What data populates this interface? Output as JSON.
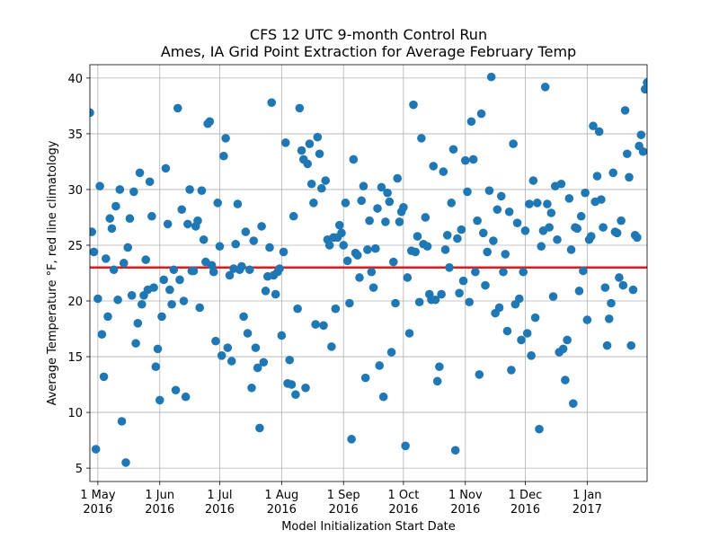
{
  "chart_data": {
    "type": "scatter",
    "title": "CFS 12 UTC 9-month Control Run",
    "subtitle": "Ames, IA Grid Point Extraction for Average February Temp",
    "xlabel": "Model Initialization Start Date",
    "ylabel": "Average Temperature  °F, red line climatology",
    "ylim": [
      3.8,
      41.2
    ],
    "xlim": [
      "2016-04-27",
      "2017-01-31"
    ],
    "grid": true,
    "climatology": 23.0,
    "colors": {
      "points": "#1f77b4",
      "climatology": "#e31a1c"
    },
    "x_ticks": [
      {
        "date": "2016-05-01",
        "line1": "1 May",
        "line2": "2016"
      },
      {
        "date": "2016-06-01",
        "line1": "1 Jun",
        "line2": "2016"
      },
      {
        "date": "2016-07-01",
        "line1": "1 Jul",
        "line2": "2016"
      },
      {
        "date": "2016-08-01",
        "line1": "1 Aug",
        "line2": "2016"
      },
      {
        "date": "2016-09-01",
        "line1": "1 Sep",
        "line2": "2016"
      },
      {
        "date": "2016-10-01",
        "line1": "1 Oct",
        "line2": "2016"
      },
      {
        "date": "2016-11-01",
        "line1": "1 Nov",
        "line2": "2016"
      },
      {
        "date": "2016-12-01",
        "line1": "1 Dec",
        "line2": "2016"
      },
      {
        "date": "2017-01-01",
        "line1": "1 Jan",
        "line2": "2017"
      }
    ],
    "y_ticks": [
      5,
      10,
      15,
      20,
      25,
      30,
      35,
      40
    ],
    "points": [
      [
        "2016-04-27",
        36.9
      ],
      [
        "2016-04-28",
        26.2
      ],
      [
        "2016-04-29",
        24.4
      ],
      [
        "2016-04-30",
        6.7
      ],
      [
        "2016-05-01",
        20.2
      ],
      [
        "2016-05-02",
        30.3
      ],
      [
        "2016-05-03",
        17.0
      ],
      [
        "2016-05-04",
        13.2
      ],
      [
        "2016-05-05",
        23.8
      ],
      [
        "2016-05-06",
        18.6
      ],
      [
        "2016-05-07",
        27.4
      ],
      [
        "2016-05-08",
        26.5
      ],
      [
        "2016-05-09",
        22.8
      ],
      [
        "2016-05-10",
        28.5
      ],
      [
        "2016-05-11",
        20.1
      ],
      [
        "2016-05-12",
        30.0
      ],
      [
        "2016-05-13",
        9.2
      ],
      [
        "2016-05-14",
        23.4
      ],
      [
        "2016-05-15",
        5.5
      ],
      [
        "2016-05-16",
        24.8
      ],
      [
        "2016-05-17",
        27.4
      ],
      [
        "2016-05-18",
        20.5
      ],
      [
        "2016-05-19",
        29.8
      ],
      [
        "2016-05-20",
        16.2
      ],
      [
        "2016-05-21",
        18.0
      ],
      [
        "2016-05-22",
        31.5
      ],
      [
        "2016-05-23",
        19.7
      ],
      [
        "2016-05-24",
        20.5
      ],
      [
        "2016-05-25",
        23.7
      ],
      [
        "2016-05-26",
        21.0
      ],
      [
        "2016-05-27",
        30.7
      ],
      [
        "2016-05-28",
        27.6
      ],
      [
        "2016-05-29",
        21.2
      ],
      [
        "2016-05-30",
        14.1
      ],
      [
        "2016-05-31",
        15.7
      ],
      [
        "2016-06-01",
        11.1
      ],
      [
        "2016-06-02",
        18.6
      ],
      [
        "2016-06-03",
        21.9
      ],
      [
        "2016-06-04",
        31.9
      ],
      [
        "2016-06-05",
        26.9
      ],
      [
        "2016-06-06",
        21.0
      ],
      [
        "2016-06-07",
        19.7
      ],
      [
        "2016-06-08",
        22.8
      ],
      [
        "2016-06-09",
        12.0
      ],
      [
        "2016-06-10",
        37.3
      ],
      [
        "2016-06-11",
        21.9
      ],
      [
        "2016-06-12",
        28.2
      ],
      [
        "2016-06-13",
        20.0
      ],
      [
        "2016-06-14",
        11.4
      ],
      [
        "2016-06-15",
        26.9
      ],
      [
        "2016-06-16",
        30.0
      ],
      [
        "2016-06-17",
        22.7
      ],
      [
        "2016-06-18",
        22.7
      ],
      [
        "2016-06-19",
        26.7
      ],
      [
        "2016-06-20",
        27.2
      ],
      [
        "2016-06-21",
        19.4
      ],
      [
        "2016-06-22",
        29.9
      ],
      [
        "2016-06-23",
        25.5
      ],
      [
        "2016-06-24",
        23.5
      ],
      [
        "2016-06-25",
        35.9
      ],
      [
        "2016-06-26",
        36.1
      ],
      [
        "2016-06-27",
        23.2
      ],
      [
        "2016-06-28",
        22.6
      ],
      [
        "2016-06-29",
        16.4
      ],
      [
        "2016-06-30",
        28.8
      ],
      [
        "2016-07-01",
        24.9
      ],
      [
        "2016-07-02",
        15.1
      ],
      [
        "2016-07-03",
        33.0
      ],
      [
        "2016-07-04",
        34.6
      ],
      [
        "2016-07-05",
        15.8
      ],
      [
        "2016-07-06",
        22.3
      ],
      [
        "2016-07-07",
        14.6
      ],
      [
        "2016-07-08",
        22.9
      ],
      [
        "2016-07-09",
        25.1
      ],
      [
        "2016-07-10",
        28.7
      ],
      [
        "2016-07-11",
        22.8
      ],
      [
        "2016-07-12",
        23.1
      ],
      [
        "2016-07-13",
        18.6
      ],
      [
        "2016-07-14",
        26.2
      ],
      [
        "2016-07-15",
        17.1
      ],
      [
        "2016-07-16",
        22.8
      ],
      [
        "2016-07-17",
        12.2
      ],
      [
        "2016-07-18",
        25.4
      ],
      [
        "2016-07-19",
        15.8
      ],
      [
        "2016-07-20",
        14.0
      ],
      [
        "2016-07-21",
        8.6
      ],
      [
        "2016-07-22",
        26.7
      ],
      [
        "2016-07-23",
        14.5
      ],
      [
        "2016-07-24",
        20.9
      ],
      [
        "2016-07-25",
        22.2
      ],
      [
        "2016-07-26",
        24.8
      ],
      [
        "2016-07-27",
        37.8
      ],
      [
        "2016-07-28",
        22.3
      ],
      [
        "2016-07-29",
        20.6
      ],
      [
        "2016-07-30",
        22.6
      ],
      [
        "2016-07-31",
        22.9
      ],
      [
        "2016-08-01",
        16.9
      ],
      [
        "2016-08-02",
        24.4
      ],
      [
        "2016-08-03",
        34.2
      ],
      [
        "2016-08-04",
        12.6
      ],
      [
        "2016-08-05",
        14.7
      ],
      [
        "2016-08-06",
        12.5
      ],
      [
        "2016-08-07",
        27.6
      ],
      [
        "2016-08-08",
        11.6
      ],
      [
        "2016-08-09",
        19.3
      ],
      [
        "2016-08-10",
        37.3
      ],
      [
        "2016-08-11",
        33.5
      ],
      [
        "2016-08-12",
        32.7
      ],
      [
        "2016-08-13",
        12.2
      ],
      [
        "2016-08-14",
        32.3
      ],
      [
        "2016-08-15",
        34.1
      ],
      [
        "2016-08-16",
        30.5
      ],
      [
        "2016-08-17",
        28.8
      ],
      [
        "2016-08-18",
        17.9
      ],
      [
        "2016-08-19",
        34.7
      ],
      [
        "2016-08-20",
        33.2
      ],
      [
        "2016-08-21",
        30.1
      ],
      [
        "2016-08-22",
        17.8
      ],
      [
        "2016-08-23",
        30.8
      ],
      [
        "2016-08-24",
        25.5
      ],
      [
        "2016-08-25",
        25.0
      ],
      [
        "2016-08-26",
        15.9
      ],
      [
        "2016-08-27",
        25.7
      ],
      [
        "2016-08-28",
        19.3
      ],
      [
        "2016-08-29",
        25.7
      ],
      [
        "2016-08-30",
        26.8
      ],
      [
        "2016-08-31",
        26.1
      ],
      [
        "2016-09-01",
        25.0
      ],
      [
        "2016-09-02",
        28.8
      ],
      [
        "2016-09-03",
        23.6
      ],
      [
        "2016-09-04",
        19.8
      ],
      [
        "2016-09-05",
        7.6
      ],
      [
        "2016-09-06",
        32.7
      ],
      [
        "2016-09-07",
        24.3
      ],
      [
        "2016-09-08",
        24.1
      ],
      [
        "2016-09-09",
        22.1
      ],
      [
        "2016-09-10",
        29.0
      ],
      [
        "2016-09-11",
        30.3
      ],
      [
        "2016-09-12",
        13.1
      ],
      [
        "2016-09-13",
        24.6
      ],
      [
        "2016-09-14",
        27.2
      ],
      [
        "2016-09-15",
        22.6
      ],
      [
        "2016-09-16",
        21.2
      ],
      [
        "2016-09-17",
        24.7
      ],
      [
        "2016-09-18",
        28.3
      ],
      [
        "2016-09-19",
        14.2
      ],
      [
        "2016-09-20",
        30.2
      ],
      [
        "2016-09-21",
        11.4
      ],
      [
        "2016-09-22",
        27.1
      ],
      [
        "2016-09-23",
        29.7
      ],
      [
        "2016-09-24",
        28.9
      ],
      [
        "2016-09-25",
        15.4
      ],
      [
        "2016-09-26",
        23.5
      ],
      [
        "2016-09-27",
        19.8
      ],
      [
        "2016-09-28",
        31.0
      ],
      [
        "2016-09-29",
        27.1
      ],
      [
        "2016-09-30",
        28.0
      ],
      [
        "2016-10-01",
        28.4
      ],
      [
        "2016-10-02",
        7.0
      ],
      [
        "2016-10-03",
        22.1
      ],
      [
        "2016-10-04",
        17.1
      ],
      [
        "2016-10-05",
        24.5
      ],
      [
        "2016-10-06",
        37.6
      ],
      [
        "2016-10-07",
        24.4
      ],
      [
        "2016-10-08",
        25.8
      ],
      [
        "2016-10-09",
        19.9
      ],
      [
        "2016-10-10",
        34.6
      ],
      [
        "2016-10-11",
        25.1
      ],
      [
        "2016-10-12",
        27.5
      ],
      [
        "2016-10-13",
        24.9
      ],
      [
        "2016-10-14",
        20.6
      ],
      [
        "2016-10-15",
        20.1
      ],
      [
        "2016-10-16",
        32.1
      ],
      [
        "2016-10-17",
        20.1
      ],
      [
        "2016-10-18",
        12.8
      ],
      [
        "2016-10-19",
        14.1
      ],
      [
        "2016-10-20",
        20.6
      ],
      [
        "2016-10-21",
        31.6
      ],
      [
        "2016-10-22",
        24.6
      ],
      [
        "2016-10-23",
        25.9
      ],
      [
        "2016-10-24",
        23.0
      ],
      [
        "2016-10-25",
        28.8
      ],
      [
        "2016-10-26",
        33.6
      ],
      [
        "2016-10-27",
        6.6
      ],
      [
        "2016-10-28",
        25.6
      ],
      [
        "2016-10-29",
        20.7
      ],
      [
        "2016-10-30",
        26.4
      ],
      [
        "2016-10-31",
        21.8
      ],
      [
        "2016-11-01",
        32.6
      ],
      [
        "2016-11-02",
        29.8
      ],
      [
        "2016-11-03",
        19.9
      ],
      [
        "2016-11-04",
        36.1
      ],
      [
        "2016-11-05",
        32.7
      ],
      [
        "2016-11-06",
        22.6
      ],
      [
        "2016-11-07",
        27.2
      ],
      [
        "2016-11-08",
        13.4
      ],
      [
        "2016-11-09",
        36.8
      ],
      [
        "2016-11-10",
        26.1
      ],
      [
        "2016-11-11",
        21.4
      ],
      [
        "2016-11-12",
        24.4
      ],
      [
        "2016-11-13",
        29.9
      ],
      [
        "2016-11-14",
        40.1
      ],
      [
        "2016-11-15",
        25.4
      ],
      [
        "2016-11-16",
        18.9
      ],
      [
        "2016-11-17",
        28.2
      ],
      [
        "2016-11-18",
        19.4
      ],
      [
        "2016-11-19",
        29.4
      ],
      [
        "2016-11-20",
        22.6
      ],
      [
        "2016-11-21",
        24.2
      ],
      [
        "2016-11-22",
        17.3
      ],
      [
        "2016-11-23",
        28.0
      ],
      [
        "2016-11-24",
        13.8
      ],
      [
        "2016-11-25",
        34.1
      ],
      [
        "2016-11-26",
        19.7
      ],
      [
        "2016-11-27",
        27.0
      ],
      [
        "2016-11-28",
        20.2
      ],
      [
        "2016-11-29",
        16.5
      ],
      [
        "2016-11-30",
        22.6
      ],
      [
        "2016-12-01",
        26.3
      ],
      [
        "2016-12-02",
        17.1
      ],
      [
        "2016-12-03",
        28.7
      ],
      [
        "2016-12-04",
        15.1
      ],
      [
        "2016-12-05",
        30.8
      ],
      [
        "2016-12-06",
        18.5
      ],
      [
        "2016-12-07",
        28.8
      ],
      [
        "2016-12-08",
        8.5
      ],
      [
        "2016-12-09",
        24.9
      ],
      [
        "2016-12-10",
        26.3
      ],
      [
        "2016-12-11",
        39.2
      ],
      [
        "2016-12-12",
        28.7
      ],
      [
        "2016-12-13",
        26.6
      ],
      [
        "2016-12-14",
        27.9
      ],
      [
        "2016-12-15",
        20.4
      ],
      [
        "2016-12-16",
        30.3
      ],
      [
        "2016-12-17",
        25.5
      ],
      [
        "2016-12-18",
        15.4
      ],
      [
        "2016-12-19",
        30.5
      ],
      [
        "2016-12-20",
        15.7
      ],
      [
        "2016-12-21",
        12.9
      ],
      [
        "2016-12-22",
        16.5
      ],
      [
        "2016-12-23",
        29.2
      ],
      [
        "2016-12-24",
        24.6
      ],
      [
        "2016-12-25",
        10.8
      ],
      [
        "2016-12-26",
        26.6
      ],
      [
        "2016-12-27",
        26.5
      ],
      [
        "2016-12-28",
        20.9
      ],
      [
        "2016-12-29",
        27.6
      ],
      [
        "2016-12-30",
        22.7
      ],
      [
        "2016-12-31",
        29.7
      ],
      [
        "2017-01-01",
        18.3
      ],
      [
        "2017-01-02",
        25.5
      ],
      [
        "2017-01-03",
        25.8
      ],
      [
        "2017-01-04",
        35.7
      ],
      [
        "2017-01-05",
        28.9
      ],
      [
        "2017-01-06",
        31.2
      ],
      [
        "2017-01-07",
        35.2
      ],
      [
        "2017-01-08",
        29.1
      ],
      [
        "2017-01-09",
        26.6
      ],
      [
        "2017-01-10",
        21.2
      ],
      [
        "2017-01-11",
        16.0
      ],
      [
        "2017-01-12",
        18.4
      ],
      [
        "2017-01-13",
        19.8
      ],
      [
        "2017-01-14",
        31.5
      ],
      [
        "2017-01-15",
        26.2
      ],
      [
        "2017-01-16",
        26.1
      ],
      [
        "2017-01-17",
        22.1
      ],
      [
        "2017-01-18",
        27.2
      ],
      [
        "2017-01-19",
        21.4
      ],
      [
        "2017-01-20",
        37.1
      ],
      [
        "2017-01-21",
        33.2
      ],
      [
        "2017-01-22",
        31.1
      ],
      [
        "2017-01-23",
        16.0
      ],
      [
        "2017-01-24",
        21.0
      ],
      [
        "2017-01-25",
        25.9
      ],
      [
        "2017-01-26",
        25.7
      ],
      [
        "2017-01-27",
        33.9
      ],
      [
        "2017-01-28",
        34.9
      ],
      [
        "2017-01-29",
        33.4
      ],
      [
        "2017-01-30",
        39.0
      ],
      [
        "2017-01-31",
        39.6
      ]
    ]
  }
}
